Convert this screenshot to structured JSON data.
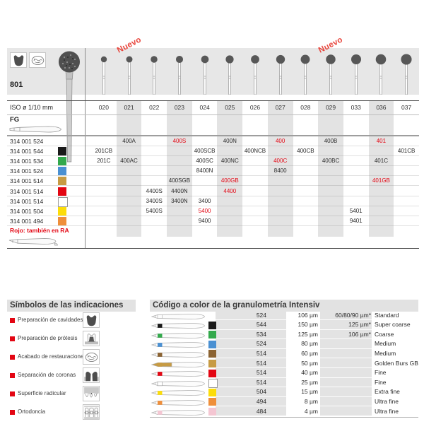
{
  "top_table": {
    "series_number": "801",
    "new_badge": "Nuevo",
    "new_badge_columns": [
      1,
      9
    ],
    "indication_icons": [
      "cavity-prep-icon",
      "restoration-finishing-icon"
    ],
    "iso_label": "ISO ø 1/10 mm",
    "shank_label": "FG",
    "sizes": [
      "020",
      "021",
      "022",
      "023",
      "024",
      "025",
      "026",
      "027",
      "028",
      "029",
      "033",
      "036",
      "037"
    ],
    "shaded_columns": [
      1,
      3,
      5,
      7,
      9,
      11
    ],
    "rows": [
      {
        "code": "314 001 524",
        "color": null,
        "cells": [
          {
            "col": 1,
            "text": "400A"
          },
          {
            "col": 3,
            "text": "400S",
            "red": true
          },
          {
            "col": 5,
            "text": "400N"
          },
          {
            "col": 7,
            "text": "400",
            "red": true
          },
          {
            "col": 9,
            "text": "400B"
          },
          {
            "col": 11,
            "text": "401",
            "red": true
          }
        ]
      },
      {
        "code": "314 001 544",
        "color": {
          "name": "black",
          "hex": "#1a1a1a"
        },
        "cells": [
          {
            "col": 0,
            "text": "201CB"
          },
          {
            "col": 4,
            "text": "400SCB"
          },
          {
            "col": 6,
            "text": "400NCB"
          },
          {
            "col": 8,
            "text": "400CB"
          },
          {
            "col": 12,
            "text": "401CB"
          }
        ]
      },
      {
        "code": "314 001 534",
        "color": {
          "name": "green",
          "hex": "#33a94c"
        },
        "cells": [
          {
            "col": 0,
            "text": "201C"
          },
          {
            "col": 1,
            "text": "400AC"
          },
          {
            "col": 4,
            "text": "400SC"
          },
          {
            "col": 5,
            "text": "400NC"
          },
          {
            "col": 7,
            "text": "400C",
            "red": true
          },
          {
            "col": 9,
            "text": "400BC"
          },
          {
            "col": 11,
            "text": "401C"
          }
        ]
      },
      {
        "code": "314 001 524",
        "color": {
          "name": "blue",
          "hex": "#4a90d2"
        },
        "cells": [
          {
            "col": 4,
            "text": "8400N"
          },
          {
            "col": 7,
            "text": "8400"
          }
        ]
      },
      {
        "code": "314 001 514",
        "color": {
          "name": "gold",
          "hex": "#c79b43"
        },
        "cells": [
          {
            "col": 3,
            "text": "400SGB"
          },
          {
            "col": 5,
            "text": "400GB",
            "red": true
          },
          {
            "col": 11,
            "text": "401GB",
            "red": true
          }
        ]
      },
      {
        "code": "314 001 514",
        "color": {
          "name": "red",
          "hex": "#e30613"
        },
        "cells": [
          {
            "col": 2,
            "text": "4400S"
          },
          {
            "col": 3,
            "text": "4400N"
          },
          {
            "col": 5,
            "text": "4400",
            "red": true
          }
        ]
      },
      {
        "code": "314 001 514",
        "color": {
          "name": "white",
          "hex": "#ffffff"
        },
        "cells": [
          {
            "col": 2,
            "text": "3400S"
          },
          {
            "col": 3,
            "text": "3400N"
          },
          {
            "col": 4,
            "text": "3400"
          }
        ]
      },
      {
        "code": "314 001 504",
        "color": {
          "name": "yellow",
          "hex": "#fcdd09"
        },
        "cells": [
          {
            "col": 2,
            "text": "5400S"
          },
          {
            "col": 4,
            "text": "5400",
            "red": true
          },
          {
            "col": 10,
            "text": "5401"
          }
        ]
      },
      {
        "code": "314 001 494",
        "color": {
          "name": "orange",
          "hex": "#ef8f3a"
        },
        "cells": [
          {
            "col": 4,
            "text": "9400"
          },
          {
            "col": 10,
            "text": "9401"
          }
        ]
      }
    ],
    "footnote": "Rojo: también en RA"
  },
  "symbols_section": {
    "title": "Símbolos de las indicaciones",
    "items": [
      {
        "label": "Preparación de cavidades",
        "icon": "cavity-prep-icon"
      },
      {
        "label": "Preparación de prótesis",
        "icon": "prosthesis-prep-icon"
      },
      {
        "label": "Acabado de restauraciones",
        "icon": "restoration-finishing-icon"
      },
      {
        "label": "Separación de coronas",
        "icon": "crown-separation-icon"
      },
      {
        "label": "Superficie radicular",
        "icon": "root-surface-icon"
      },
      {
        "label": "Ortodoncia",
        "icon": "orthodontics-icon"
      }
    ]
  },
  "granulometry_section": {
    "title": "Código a color de la granulometría Intensiv",
    "rows": [
      {
        "color": null,
        "color_name": "none",
        "code": "524",
        "size": "106 µm",
        "extra": "60/80/90 µm*",
        "name": "Standard"
      },
      {
        "color": "#1a1a1a",
        "color_name": "black",
        "code": "544",
        "size": "150 µm",
        "extra": "125 µm*",
        "name": "Super coarse"
      },
      {
        "color": "#33a94c",
        "color_name": "green",
        "code": "534",
        "size": "125 µm",
        "extra": "106 µm*",
        "name": "Coarse"
      },
      {
        "color": "#4a90d2",
        "color_name": "blue",
        "code": "524",
        "size": "80 µm",
        "extra": "",
        "name": "Medium"
      },
      {
        "color": "#8b6332",
        "color_name": "brown",
        "code": "514",
        "size": "60 µm",
        "extra": "",
        "name": "Medium"
      },
      {
        "color": "#c79b43",
        "color_name": "gold",
        "code": "514",
        "size": "50 µm",
        "extra": "",
        "name": "Golden Burs GB"
      },
      {
        "color": "#e30613",
        "color_name": "red",
        "code": "514",
        "size": "40 µm",
        "extra": "",
        "name": "Fine"
      },
      {
        "color": "#ffffff",
        "color_name": "white",
        "code": "514",
        "size": "25 µm",
        "extra": "",
        "name": "Fine"
      },
      {
        "color": "#fcdd09",
        "color_name": "yellow",
        "code": "504",
        "size": "15 µm",
        "extra": "",
        "name": "Extra fine"
      },
      {
        "color": "#ef8f3a",
        "color_name": "orange",
        "code": "494",
        "size": "8 µm",
        "extra": "",
        "name": "Ultra fine"
      },
      {
        "color": "#f4c6d2",
        "color_name": "pink",
        "code": "484",
        "size": "4 µm",
        "extra": "",
        "name": "Ultra fine"
      }
    ]
  },
  "colors": {
    "accent_red": "#e30613",
    "band_gray": "#e7e7e7",
    "column_shade_gray": "#e3e3e3",
    "title_bar_gray": "#e2e2e2"
  }
}
